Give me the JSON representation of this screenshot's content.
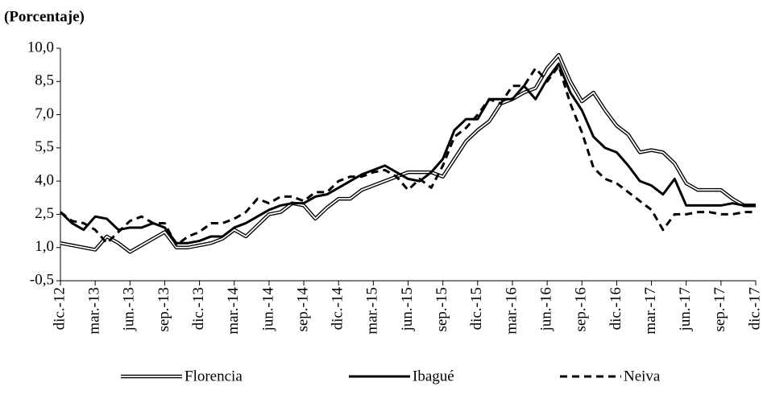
{
  "chart_data": {
    "type": "line",
    "title": "(Porcentaje)",
    "categories": [
      "dic.-12",
      null,
      null,
      "mar.-13",
      null,
      null,
      "jun.-13",
      null,
      null,
      "sep.-13",
      null,
      null,
      "dic.-13",
      null,
      null,
      "mar.-14",
      null,
      null,
      "jun.-14",
      null,
      null,
      "sep.-14",
      null,
      null,
      "dic.-14",
      null,
      null,
      "mar.-15",
      null,
      null,
      "jun.-15",
      null,
      null,
      "sep.-15",
      null,
      null,
      "dic.-15",
      null,
      null,
      "mar.-16",
      null,
      null,
      "jun.-16",
      null,
      null,
      "sep.-16",
      null,
      null,
      "dic.-16",
      null,
      null,
      "mar.-17",
      null,
      null,
      "jun.-17",
      null,
      null,
      "sep.-17",
      null,
      null,
      "dic.-17"
    ],
    "series": [
      {
        "name": "Florencia",
        "color": "#000000",
        "style": "double",
        "values": [
          1.2,
          1.1,
          1.0,
          0.9,
          1.5,
          1.2,
          0.8,
          1.1,
          1.4,
          1.7,
          1.0,
          1.0,
          1.1,
          1.2,
          1.4,
          1.8,
          1.5,
          2.0,
          2.5,
          2.6,
          3.0,
          2.9,
          2.3,
          2.8,
          3.2,
          3.2,
          3.6,
          3.8,
          4.0,
          4.2,
          4.4,
          4.4,
          4.4,
          4.2,
          5.0,
          5.8,
          6.3,
          6.7,
          7.5,
          7.7,
          8.0,
          8.2,
          9.1,
          9.7,
          8.5,
          7.6,
          8.0,
          7.2,
          6.5,
          6.1,
          5.3,
          5.4,
          5.3,
          4.8,
          3.9,
          3.6,
          3.6,
          3.6,
          3.2,
          2.9,
          2.9
        ]
      },
      {
        "name": "Ibagué",
        "color": "#000000",
        "style": "solid",
        "values": [
          2.6,
          2.1,
          1.8,
          2.4,
          2.3,
          1.8,
          1.9,
          1.9,
          2.1,
          1.9,
          1.2,
          1.2,
          1.3,
          1.5,
          1.5,
          1.9,
          2.1,
          2.4,
          2.7,
          2.9,
          3.0,
          3.0,
          3.3,
          3.4,
          3.7,
          4.0,
          4.3,
          4.5,
          4.7,
          4.4,
          4.1,
          4.0,
          4.4,
          5.0,
          6.3,
          6.8,
          6.8,
          7.7,
          7.7,
          7.7,
          8.3,
          7.7,
          8.6,
          9.3,
          8.0,
          7.2,
          6.0,
          5.5,
          5.3,
          4.7,
          4.0,
          3.8,
          3.4,
          4.1,
          2.9,
          2.9,
          2.9,
          2.9,
          3.0,
          2.9,
          2.9
        ]
      },
      {
        "name": "Neiva",
        "color": "#000000",
        "style": "dashed",
        "values": [
          2.6,
          2.2,
          2.1,
          1.8,
          1.2,
          1.7,
          2.2,
          2.4,
          2.1,
          2.1,
          1.1,
          1.5,
          1.7,
          2.1,
          2.1,
          2.3,
          2.6,
          3.2,
          3.0,
          3.3,
          3.3,
          3.1,
          3.5,
          3.5,
          4.0,
          4.2,
          4.2,
          4.4,
          4.5,
          4.2,
          3.6,
          4.1,
          3.7,
          4.7,
          6.0,
          6.4,
          7.0,
          7.7,
          7.5,
          8.3,
          8.3,
          9.1,
          8.5,
          9.2,
          7.5,
          6.2,
          4.6,
          4.1,
          3.9,
          3.5,
          3.1,
          2.7,
          1.8,
          2.5,
          2.5,
          2.6,
          2.6,
          2.5,
          2.5,
          2.6,
          2.6
        ]
      }
    ],
    "ylim": [
      -0.5,
      10
    ],
    "yticks": [
      {
        "value": -0.5,
        "label": "-0,5"
      },
      {
        "value": 1,
        "label": "1,0"
      },
      {
        "value": 2.5,
        "label": "2,5"
      },
      {
        "value": 4,
        "label": "4,0"
      },
      {
        "value": 5.5,
        "label": "5,5"
      },
      {
        "value": 7,
        "label": "7,0"
      },
      {
        "value": 8.5,
        "label": "8,5"
      },
      {
        "value": 10,
        "label": "10,0"
      }
    ],
    "grid": false,
    "legend": "bottom"
  }
}
